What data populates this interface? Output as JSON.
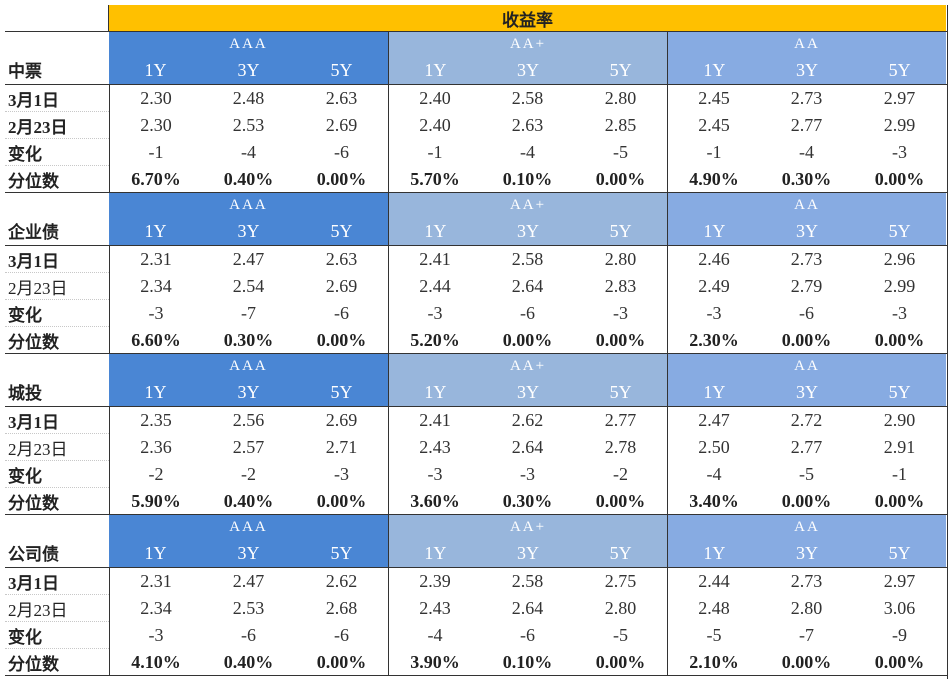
{
  "title": "收益率",
  "grades": [
    "AAA",
    "AA+",
    "AA"
  ],
  "tenors": [
    "1Y",
    "3Y",
    "5Y"
  ],
  "colors": {
    "title_bg": "#ffc000",
    "aaa_bg": "#4a86d4",
    "aa_plus_bg": "#98b6dc",
    "aa_bg": "#87abe2"
  },
  "sections": [
    {
      "name": "中票",
      "rows": [
        {
          "label": "3月1日",
          "bold": true,
          "values": [
            "2.30",
            "2.48",
            "2.63",
            "2.40",
            "2.58",
            "2.80",
            "2.45",
            "2.73",
            "2.97"
          ]
        },
        {
          "label": "2月23日",
          "bold": true,
          "values": [
            "2.30",
            "2.53",
            "2.69",
            "2.40",
            "2.63",
            "2.85",
            "2.45",
            "2.77",
            "2.99"
          ]
        },
        {
          "label": "变化",
          "bold": true,
          "values": [
            "-1",
            "-4",
            "-6",
            "-1",
            "-4",
            "-5",
            "-1",
            "-4",
            "-3"
          ]
        },
        {
          "label": "分位数",
          "bold": true,
          "values": [
            "6.70%",
            "0.40%",
            "0.00%",
            "5.70%",
            "0.10%",
            "0.00%",
            "4.90%",
            "0.30%",
            "0.00%"
          ]
        }
      ]
    },
    {
      "name": "企业债",
      "rows": [
        {
          "label": "3月1日",
          "bold": true,
          "values": [
            "2.31",
            "2.47",
            "2.63",
            "2.41",
            "2.58",
            "2.80",
            "2.46",
            "2.73",
            "2.96"
          ]
        },
        {
          "label": "2月23日",
          "bold": false,
          "values": [
            "2.34",
            "2.54",
            "2.69",
            "2.44",
            "2.64",
            "2.83",
            "2.49",
            "2.79",
            "2.99"
          ]
        },
        {
          "label": "变化",
          "bold": true,
          "values": [
            "-3",
            "-7",
            "-6",
            "-3",
            "-6",
            "-3",
            "-3",
            "-6",
            "-3"
          ]
        },
        {
          "label": "分位数",
          "bold": true,
          "values": [
            "6.60%",
            "0.30%",
            "0.00%",
            "5.20%",
            "0.00%",
            "0.00%",
            "2.30%",
            "0.00%",
            "0.00%"
          ]
        }
      ]
    },
    {
      "name": "城投",
      "rows": [
        {
          "label": "3月1日",
          "bold": true,
          "values": [
            "2.35",
            "2.56",
            "2.69",
            "2.41",
            "2.62",
            "2.77",
            "2.47",
            "2.72",
            "2.90"
          ]
        },
        {
          "label": "2月23日",
          "bold": false,
          "values": [
            "2.36",
            "2.57",
            "2.71",
            "2.43",
            "2.64",
            "2.78",
            "2.50",
            "2.77",
            "2.91"
          ]
        },
        {
          "label": "变化",
          "bold": true,
          "values": [
            "-2",
            "-2",
            "-3",
            "-3",
            "-3",
            "-2",
            "-4",
            "-5",
            "-1"
          ]
        },
        {
          "label": "分位数",
          "bold": true,
          "values": [
            "5.90%",
            "0.40%",
            "0.00%",
            "3.60%",
            "0.30%",
            "0.00%",
            "3.40%",
            "0.00%",
            "0.00%"
          ]
        }
      ]
    },
    {
      "name": "公司债",
      "rows": [
        {
          "label": "3月1日",
          "bold": true,
          "values": [
            "2.31",
            "2.47",
            "2.62",
            "2.39",
            "2.58",
            "2.75",
            "2.44",
            "2.73",
            "2.97"
          ]
        },
        {
          "label": "2月23日",
          "bold": false,
          "values": [
            "2.34",
            "2.53",
            "2.68",
            "2.43",
            "2.64",
            "2.80",
            "2.48",
            "2.80",
            "3.06"
          ]
        },
        {
          "label": "变化",
          "bold": true,
          "values": [
            "-3",
            "-6",
            "-6",
            "-4",
            "-6",
            "-5",
            "-5",
            "-7",
            "-9"
          ]
        },
        {
          "label": "分位数",
          "bold": true,
          "values": [
            "4.10%",
            "0.40%",
            "0.00%",
            "3.90%",
            "0.10%",
            "0.00%",
            "2.10%",
            "0.00%",
            "0.00%"
          ]
        }
      ]
    }
  ]
}
